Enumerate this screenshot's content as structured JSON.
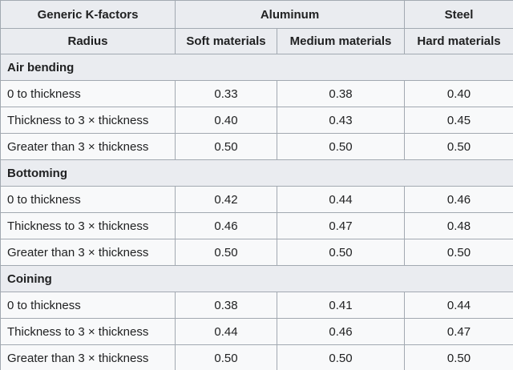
{
  "table": {
    "header": [
      [
        "Generic K-factors",
        "Aluminum",
        "Steel"
      ],
      [
        "Radius",
        "Soft materials",
        "Medium materials",
        "Hard materials"
      ]
    ],
    "groups": [
      {
        "name": "Air bending",
        "rows": [
          [
            "0 to thickness",
            "0.33",
            "0.38",
            "0.40"
          ],
          [
            "Thickness to 3 × thickness",
            "0.40",
            "0.43",
            "0.45"
          ],
          [
            "Greater than 3 × thickness",
            "0.50",
            "0.50",
            "0.50"
          ]
        ]
      },
      {
        "name": "Bottoming",
        "rows": [
          [
            "0 to thickness",
            "0.42",
            "0.44",
            "0.46"
          ],
          [
            "Thickness to 3 × thickness",
            "0.46",
            "0.47",
            "0.48"
          ],
          [
            "Greater than 3 × thickness",
            "0.50",
            "0.50",
            "0.50"
          ]
        ]
      },
      {
        "name": "Coining",
        "rows": [
          [
            "0 to thickness",
            "0.38",
            "0.41",
            "0.44"
          ],
          [
            "Thickness to 3 × thickness",
            "0.44",
            "0.46",
            "0.47"
          ],
          [
            "Greater than 3 × thickness",
            "0.50",
            "0.50",
            "0.50"
          ]
        ]
      }
    ]
  }
}
